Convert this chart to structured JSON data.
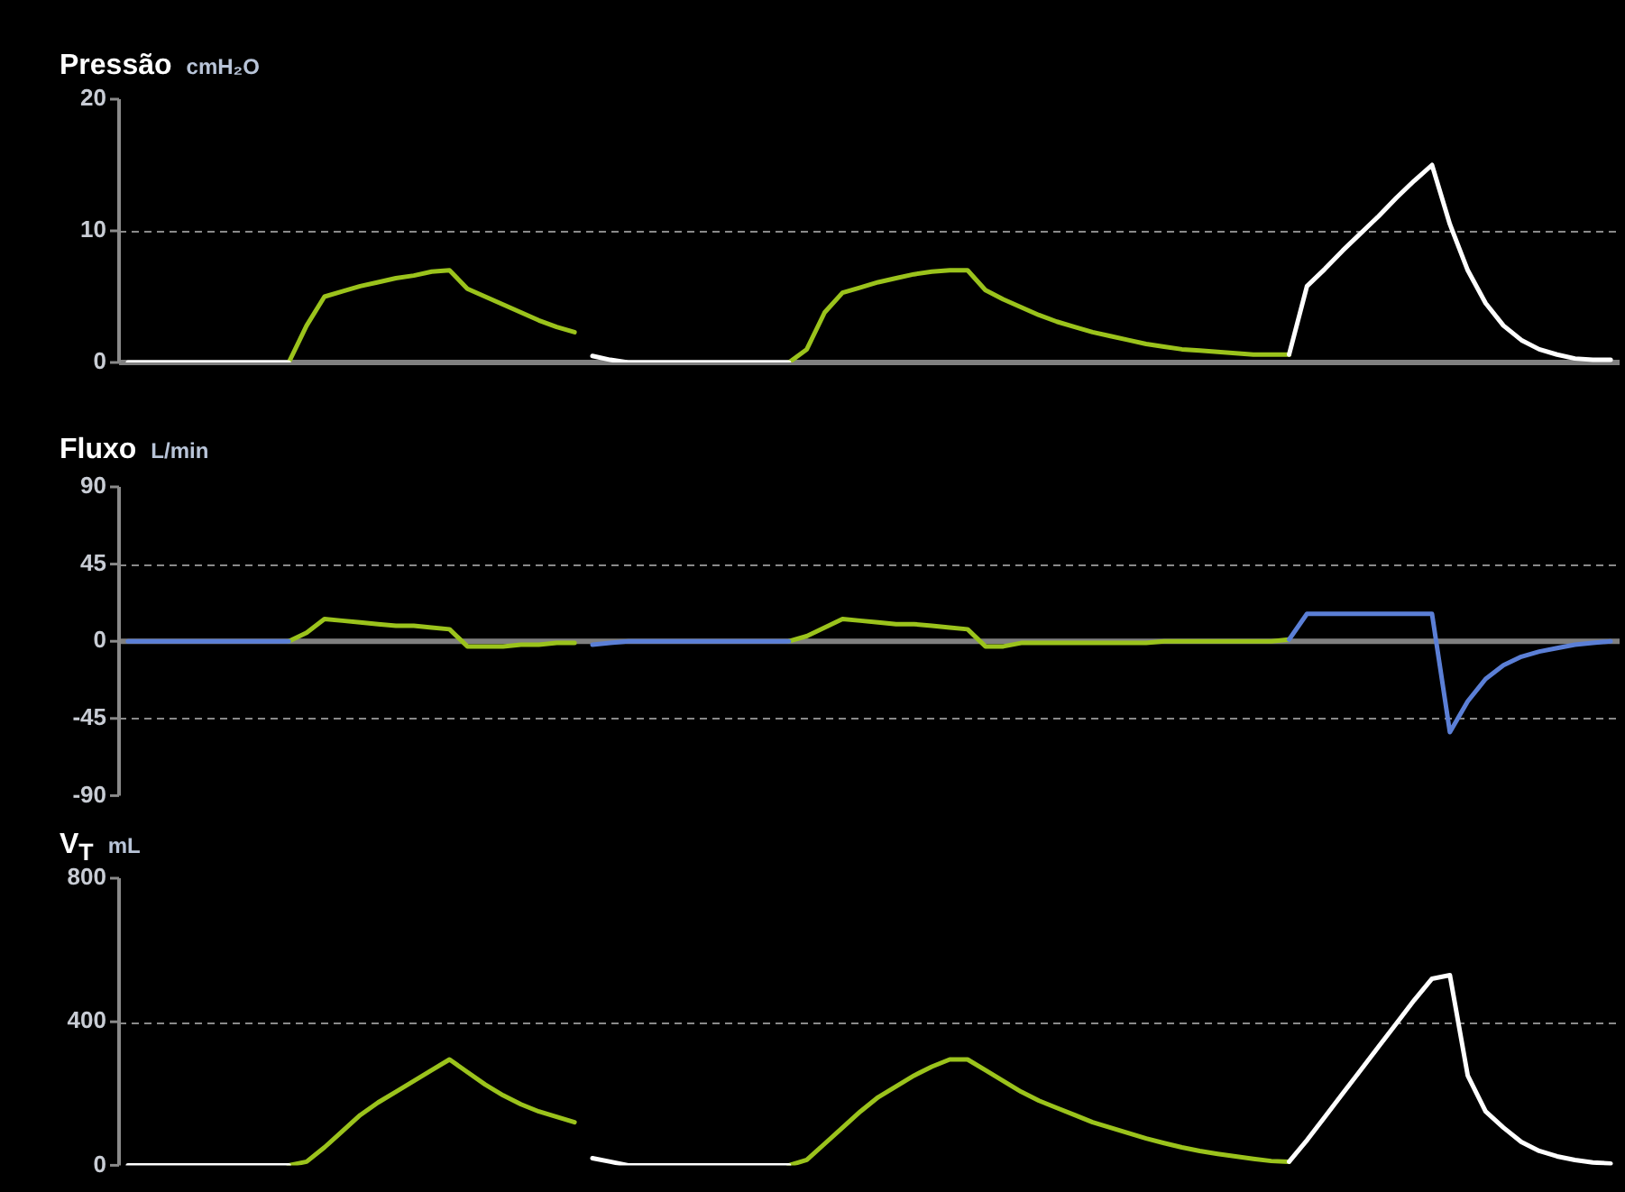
{
  "chart_data": [
    {
      "type": "line",
      "title": "Pressão",
      "subtitle": "cmH₂O",
      "categories": [
        null,
        null,
        null,
        null,
        null,
        null,
        null,
        null,
        null,
        null,
        null,
        null,
        null,
        null,
        null,
        null,
        null,
        null,
        null,
        null,
        null,
        null,
        null,
        null,
        null,
        null,
        null,
        null,
        null,
        null,
        null,
        null,
        null,
        null,
        null,
        null,
        null,
        null,
        null,
        null,
        null,
        null,
        null,
        null,
        null,
        null,
        null,
        null,
        null,
        null,
        null,
        null,
        null,
        null,
        null,
        null,
        null,
        null,
        null,
        null,
        null,
        null,
        null,
        null,
        null,
        null,
        null,
        null,
        null,
        null,
        null,
        null,
        null,
        null,
        null,
        null,
        null,
        null,
        null,
        null,
        null,
        null,
        null,
        null
      ],
      "series": [
        {
          "color": "#ffffff",
          "values": [
            0,
            0,
            0,
            0,
            0,
            0,
            0,
            0,
            0,
            0,
            null,
            null,
            null,
            null,
            null,
            null,
            null,
            null,
            null,
            null,
            null,
            null,
            null,
            null,
            null,
            null,
            0.5,
            0.2,
            0,
            0,
            0,
            0,
            0,
            0,
            0,
            0,
            0,
            0,
            null,
            null,
            null,
            null,
            null,
            null,
            null,
            null,
            null,
            null,
            null,
            null,
            null,
            null,
            null,
            null,
            null,
            null,
            null,
            null,
            null,
            null,
            null,
            null,
            null,
            null,
            null,
            0.6,
            5.8,
            7.1,
            8.5,
            9.8,
            11.1,
            12.5,
            13.8,
            15,
            10.5,
            7,
            4.5,
            2.8,
            1.7,
            1,
            0.6,
            0.3,
            0.2,
            0.2
          ]
        },
        {
          "color": "#9bc31c",
          "values": [
            null,
            null,
            null,
            null,
            null,
            null,
            null,
            null,
            null,
            0,
            2.8,
            5,
            5.4,
            5.8,
            6.1,
            6.4,
            6.6,
            6.9,
            7,
            5.6,
            5,
            4.4,
            3.8,
            3.2,
            2.7,
            2.3,
            null,
            null,
            null,
            null,
            null,
            null,
            null,
            null,
            null,
            null,
            null,
            0,
            1,
            3.8,
            5.3,
            5.7,
            6.1,
            6.4,
            6.7,
            6.9,
            7,
            7,
            5.5,
            4.8,
            4.2,
            3.6,
            3.1,
            2.7,
            2.3,
            2,
            1.7,
            1.4,
            1.2,
            1,
            0.9,
            0.8,
            0.7,
            0.6,
            0.6,
            0.6,
            null,
            null,
            null,
            null,
            null,
            null,
            null,
            null,
            null,
            null,
            null,
            null,
            null,
            null,
            null,
            null,
            null,
            null
          ]
        }
      ],
      "ylim": [
        0,
        20
      ],
      "yticks": [
        0,
        10,
        20
      ],
      "grid": "y",
      "tick_labels": "y",
      "ref_lines": [
        {
          "axis": "y",
          "value": 0,
          "color": "#808080"
        }
      ]
    },
    {
      "type": "line",
      "title": "Fluxo",
      "subtitle": "L/min",
      "categories": [
        null,
        null,
        null,
        null,
        null,
        null,
        null,
        null,
        null,
        null,
        null,
        null,
        null,
        null,
        null,
        null,
        null,
        null,
        null,
        null,
        null,
        null,
        null,
        null,
        null,
        null,
        null,
        null,
        null,
        null,
        null,
        null,
        null,
        null,
        null,
        null,
        null,
        null,
        null,
        null,
        null,
        null,
        null,
        null,
        null,
        null,
        null,
        null,
        null,
        null,
        null,
        null,
        null,
        null,
        null,
        null,
        null,
        null,
        null,
        null,
        null,
        null,
        null,
        null,
        null,
        null,
        null,
        null,
        null,
        null,
        null,
        null,
        null,
        null,
        null,
        null,
        null,
        null,
        null,
        null,
        null,
        null,
        null,
        null
      ],
      "series": [
        {
          "color": "#5b7fd6",
          "values": [
            0,
            0,
            0,
            0,
            0,
            0,
            0,
            0,
            0,
            0,
            null,
            null,
            null,
            null,
            null,
            null,
            null,
            null,
            null,
            null,
            null,
            null,
            null,
            null,
            null,
            null,
            -2,
            -1,
            0,
            0,
            0,
            0,
            0,
            0,
            0,
            0,
            0,
            0,
            null,
            null,
            null,
            null,
            null,
            null,
            null,
            null,
            null,
            null,
            null,
            null,
            null,
            null,
            null,
            null,
            null,
            null,
            null,
            null,
            null,
            null,
            null,
            null,
            null,
            null,
            null,
            1,
            16,
            16,
            16,
            16,
            16,
            16,
            16,
            16,
            -53,
            -35,
            -22,
            -14,
            -9,
            -6,
            -4,
            -2,
            -1,
            0
          ]
        },
        {
          "color": "#9bc31c",
          "values": [
            null,
            null,
            null,
            null,
            null,
            null,
            null,
            null,
            null,
            0,
            5,
            13,
            12,
            11,
            10,
            9,
            9,
            8,
            7,
            -3,
            -3,
            -3,
            -2,
            -2,
            -1,
            -1,
            null,
            null,
            null,
            null,
            null,
            null,
            null,
            null,
            null,
            null,
            null,
            0,
            3,
            8,
            13,
            12,
            11,
            10,
            10,
            9,
            8,
            7,
            -3,
            -3,
            -1,
            -1,
            -1,
            -1,
            -1,
            -1,
            -1,
            -1,
            0,
            0,
            0,
            0,
            0,
            0,
            0,
            1,
            null,
            null,
            null,
            null,
            null,
            null,
            null,
            null,
            null,
            null,
            null,
            null,
            null,
            null,
            null,
            null,
            null,
            null
          ]
        }
      ],
      "ylim": [
        -90,
        90
      ],
      "yticks": [
        -90,
        -45,
        0,
        45,
        90
      ],
      "grid": "y",
      "tick_labels": "y",
      "ref_lines": [
        {
          "axis": "y",
          "value": 0,
          "color": "#808080"
        }
      ]
    },
    {
      "type": "line",
      "title": "V$_{T}$",
      "subtitle": "mL",
      "categories": [
        null,
        null,
        null,
        null,
        null,
        null,
        null,
        null,
        null,
        null,
        null,
        null,
        null,
        null,
        null,
        null,
        null,
        null,
        null,
        null,
        null,
        null,
        null,
        null,
        null,
        null,
        null,
        null,
        null,
        null,
        null,
        null,
        null,
        null,
        null,
        null,
        null,
        null,
        null,
        null,
        null,
        null,
        null,
        null,
        null,
        null,
        null,
        null,
        null,
        null,
        null,
        null,
        null,
        null,
        null,
        null,
        null,
        null,
        null,
        null,
        null,
        null,
        null,
        null,
        null,
        null,
        null,
        null,
        null,
        null,
        null,
        null,
        null,
        null,
        null,
        null,
        null,
        null,
        null,
        null,
        null,
        null,
        null,
        null
      ],
      "series": [
        {
          "color": "#ffffff",
          "values": [
            0,
            0,
            0,
            0,
            0,
            0,
            0,
            0,
            0,
            0,
            null,
            null,
            null,
            null,
            null,
            null,
            null,
            null,
            null,
            null,
            null,
            null,
            null,
            null,
            null,
            null,
            20,
            10,
            0,
            0,
            0,
            0,
            0,
            0,
            0,
            0,
            0,
            0,
            null,
            null,
            null,
            null,
            null,
            null,
            null,
            null,
            null,
            null,
            null,
            null,
            null,
            null,
            null,
            null,
            null,
            null,
            null,
            null,
            null,
            null,
            null,
            null,
            null,
            null,
            null,
            10,
            70,
            135,
            200,
            265,
            330,
            395,
            460,
            520,
            530,
            250,
            150,
            105,
            65,
            40,
            25,
            15,
            8,
            5
          ]
        },
        {
          "color": "#9bc31c",
          "values": [
            null,
            null,
            null,
            null,
            null,
            null,
            null,
            null,
            null,
            0,
            10,
            50,
            95,
            140,
            175,
            205,
            235,
            265,
            295,
            260,
            225,
            195,
            170,
            150,
            135,
            120,
            null,
            null,
            null,
            null,
            null,
            null,
            null,
            null,
            null,
            null,
            null,
            0,
            15,
            60,
            105,
            150,
            190,
            220,
            250,
            275,
            295,
            295,
            265,
            235,
            205,
            180,
            160,
            140,
            120,
            105,
            90,
            75,
            62,
            50,
            40,
            32,
            25,
            18,
            12,
            10,
            null,
            null,
            null,
            null,
            null,
            null,
            null,
            null,
            null,
            null,
            null,
            null,
            null,
            null,
            null,
            null,
            null,
            null
          ]
        }
      ],
      "ylim": [
        0,
        800
      ],
      "yticks": [
        0,
        400,
        800
      ],
      "grid": "y",
      "tick_labels": "y"
    }
  ]
}
